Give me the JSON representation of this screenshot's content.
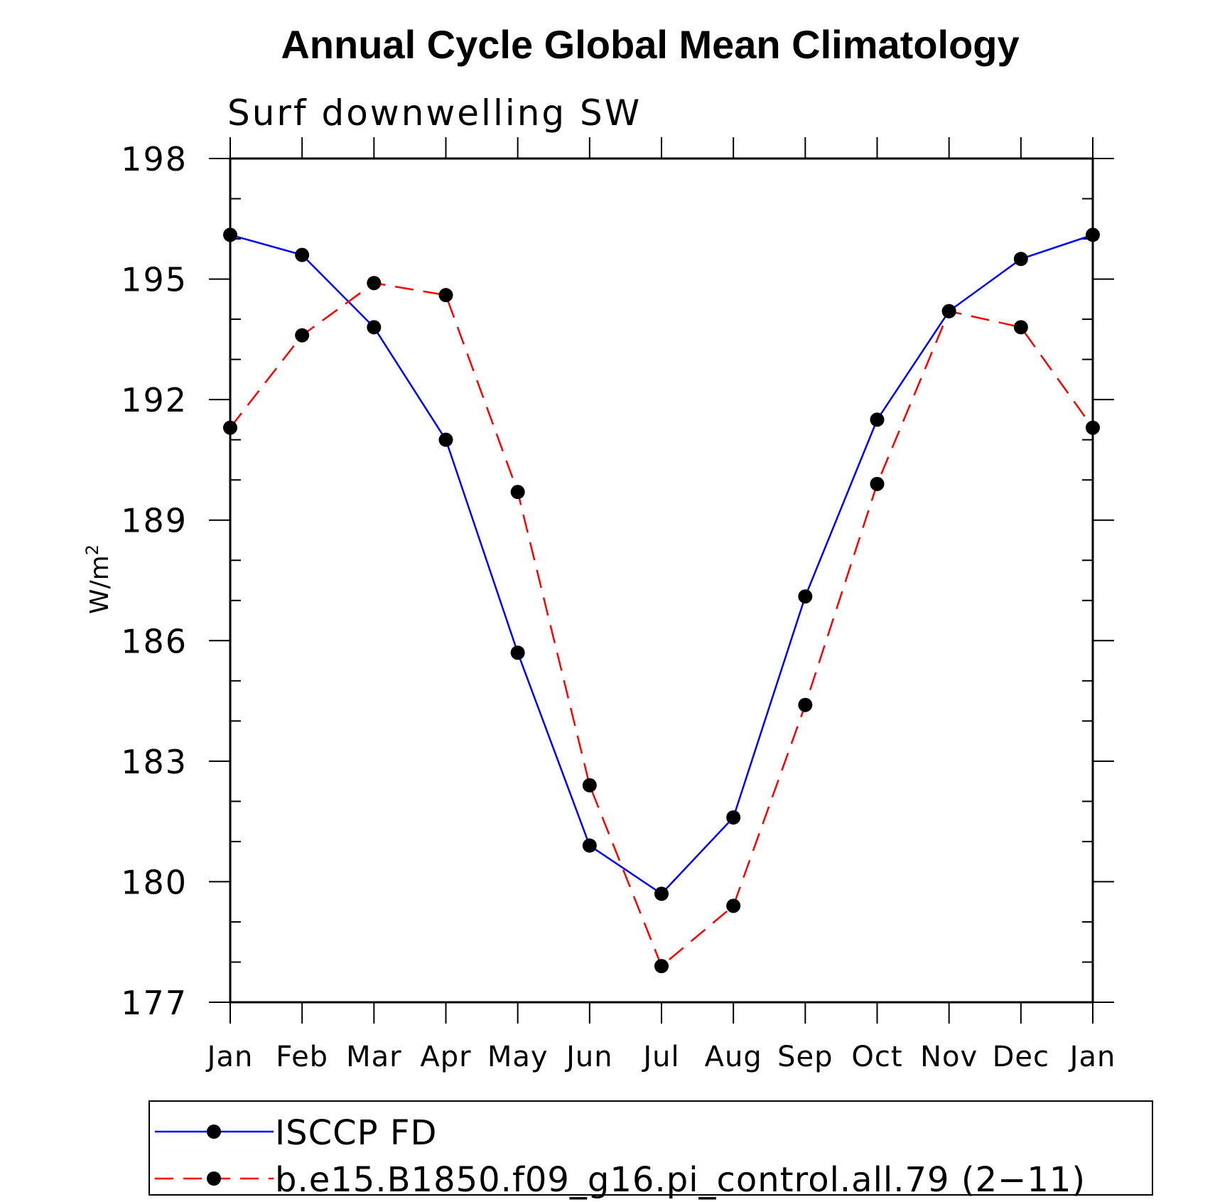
{
  "chart_data": {
    "type": "line",
    "title": "Annual Cycle Global Mean Climatology",
    "subtitle": "Surf downwelling SW",
    "ylabel": "W/m",
    "ylabel_sup": "2",
    "ylim": [
      177,
      198
    ],
    "yticks": [
      177,
      180,
      183,
      186,
      189,
      192,
      195,
      198
    ],
    "categories": [
      "Jan",
      "Feb",
      "Mar",
      "Apr",
      "May",
      "Jun",
      "Jul",
      "Aug",
      "Sep",
      "Oct",
      "Nov",
      "Dec",
      "Jan"
    ],
    "series": [
      {
        "name": "ISCCP FD",
        "color": "#0000ff",
        "dash": "solid",
        "values": [
          196.1,
          195.6,
          193.8,
          191.0,
          185.7,
          180.9,
          179.7,
          181.6,
          187.1,
          191.5,
          194.2,
          195.5,
          196.1
        ]
      },
      {
        "name": "b.e15.B1850.f09_g16.pi_control.all.79 (2−11)",
        "color": "#ff0000",
        "dash": "dashed",
        "values": [
          191.3,
          193.6,
          194.9,
          194.6,
          189.7,
          182.4,
          177.9,
          179.4,
          184.4,
          189.9,
          194.2,
          193.8,
          191.3
        ]
      }
    ],
    "legend_position": "bottom"
  }
}
